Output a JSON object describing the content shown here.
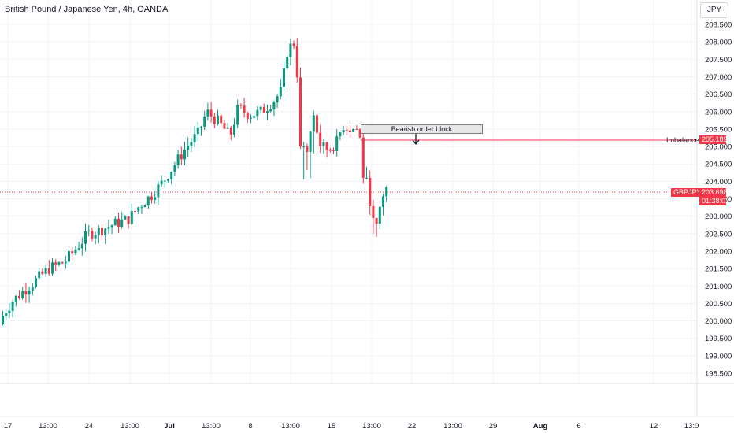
{
  "header": {
    "title": "British Pound / Japanese Yen, 4h, OANDA",
    "currency_button": "JPY"
  },
  "annotations": {
    "order_block_label": "Bearish order block",
    "imbalance_label": "Imbalance",
    "imbalance_price": "205.189",
    "symbol_label": "GBPJPY",
    "last_price": "203.698",
    "countdown": "01:38:02"
  },
  "colors": {
    "up": "#089981",
    "down": "#f23645",
    "grid": "#f0f3fa",
    "axis_text": "#131722"
  },
  "chart_data": {
    "type": "candlestick",
    "title": "British Pound / Japanese Yen, 4h, OANDA",
    "y_axis": {
      "ticks": [
        "208.500",
        "208.000",
        "207.500",
        "207.000",
        "206.500",
        "206.000",
        "205.500",
        "205.000",
        "204.500",
        "204.000",
        "203.500",
        "203.000",
        "202.500",
        "202.000",
        "201.500",
        "201.000",
        "200.500",
        "200.000",
        "199.500",
        "199.000",
        "198.500"
      ],
      "range": [
        198.35,
        208.75
      ]
    },
    "x_axis": {
      "ticks": [
        "17",
        "13:00",
        "24",
        "13:00",
        "Jul",
        "13:00",
        "8",
        "13:00",
        "15",
        "13:00",
        "22",
        "13:00",
        "29",
        "Aug",
        "6",
        "12",
        "13:0"
      ],
      "bold": [
        "Jul",
        "Aug"
      ]
    },
    "price_path": [
      [
        0,
        199.9
      ],
      [
        10,
        200.3
      ],
      [
        20,
        200.6
      ],
      [
        35,
        200.9
      ],
      [
        50,
        201.2
      ],
      [
        65,
        201.5
      ],
      [
        85,
        201.7
      ],
      [
        100,
        202.1
      ],
      [
        115,
        202.5
      ],
      [
        130,
        202.6
      ],
      [
        150,
        202.8
      ],
      [
        165,
        202.9
      ],
      [
        180,
        203.3
      ],
      [
        195,
        203.6
      ],
      [
        210,
        204.0
      ],
      [
        225,
        204.5
      ],
      [
        240,
        205.0
      ],
      [
        255,
        205.4
      ],
      [
        265,
        206.0
      ],
      [
        280,
        205.7
      ],
      [
        295,
        205.3
      ],
      [
        305,
        206.1
      ],
      [
        320,
        205.9
      ],
      [
        335,
        206.0
      ],
      [
        350,
        206.3
      ],
      [
        360,
        206.6
      ],
      [
        368,
        207.8
      ],
      [
        378,
        208.0
      ],
      [
        382,
        206.2
      ],
      [
        384,
        205.0
      ],
      [
        393,
        204.8
      ],
      [
        400,
        205.9
      ],
      [
        410,
        205.0
      ],
      [
        420,
        204.9
      ],
      [
        430,
        205.1
      ],
      [
        438,
        205.6
      ],
      [
        448,
        205.5
      ],
      [
        456,
        205.5
      ],
      [
        460,
        205.2
      ],
      [
        463,
        204.2
      ],
      [
        470,
        203.7
      ],
      [
        475,
        203.2
      ],
      [
        478,
        202.5
      ],
      [
        482,
        202.7
      ],
      [
        486,
        203.4
      ],
      [
        492,
        203.8
      ]
    ],
    "order_block": {
      "label": "Bearish order block",
      "low": 205.33,
      "high": 205.55
    },
    "imbalance_level": 205.189,
    "last_price": 203.698,
    "legend": "none",
    "grid": true
  }
}
